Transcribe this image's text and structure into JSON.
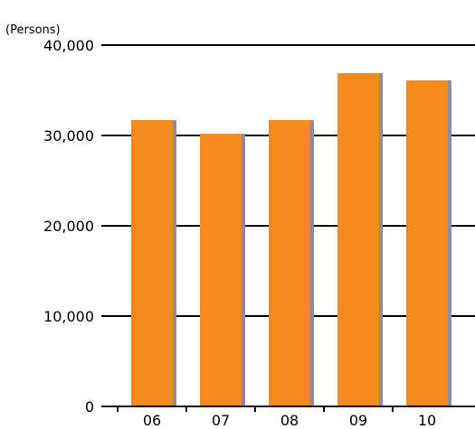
{
  "chart_data": {
    "type": "bar",
    "unit_label": "(Persons)",
    "categories": [
      "06",
      "07",
      "08",
      "09",
      "10"
    ],
    "values": [
      31700,
      30200,
      31700,
      36900,
      36100
    ],
    "ylim": [
      0,
      40000
    ],
    "yticks": [
      0,
      10000,
      20000,
      30000,
      40000
    ],
    "ytick_labels": [
      "0",
      "10,000",
      "20,000",
      "30,000",
      "40,000"
    ],
    "grid": true,
    "legend": "none",
    "colors": {
      "bar": "#f58a1f",
      "bar_shadow": "#8e8aa6",
      "grid": "#000000"
    }
  }
}
